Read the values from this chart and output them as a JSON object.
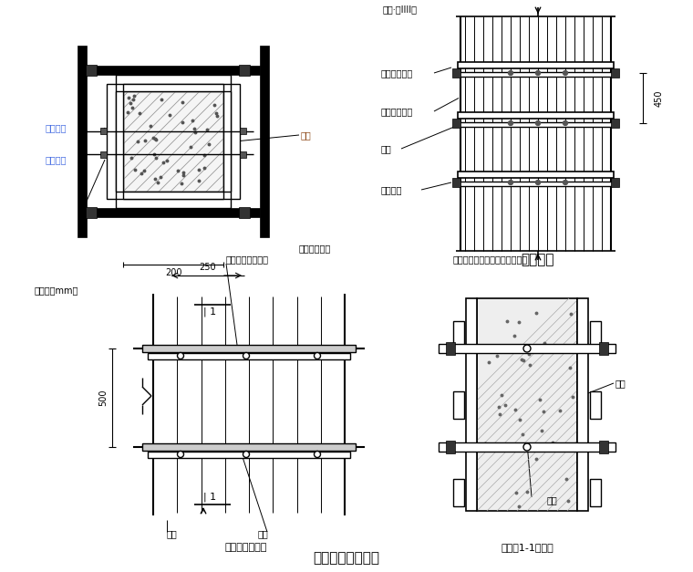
{
  "title": "墙模板支模示意图",
  "bg_color": "#ffffff",
  "line_color": "#000000",
  "text_color": "#000000",
  "blue_color": "#4169E1",
  "brown_color": "#8B4513",
  "fig_width": 7.6,
  "fig_height": 6.27,
  "labels_top_left": [
    "对拉螺杆",
    "钒管外箌"
  ],
  "label_top_left_right": "木方",
  "labels_top_right": [
    "柱箌（方木）",
    "窻楼（方木）",
    "面板",
    "对拉螺栓"
  ],
  "title_top_right": "柱立面图",
  "unit_label": "单位：（mm）",
  "dim_450": "450",
  "dim_200": "200",
  "dim_250": "250",
  "dim_500": "500",
  "labels_bottom_left": [
    "面板",
    "螺栋"
  ],
  "title_bottom_left": "墙模板正立面图",
  "labels_top_bottom_left": [
    "主樼（圆形钒管）",
    "次樼（方木）"
  ],
  "labels_top_bottom_right": [
    "主樼（圆形钒管）次樼（方木）"
  ],
  "labels_bottom_right": [
    "面板",
    "螺柱"
  ],
  "title_bottom_right": "墙模板1-1剑面图",
  "section_mark": "1",
  "top_label": "平位·（IIII）"
}
